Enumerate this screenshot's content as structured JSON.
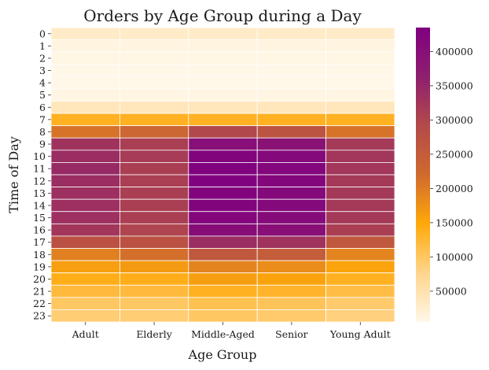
{
  "chart_data": {
    "type": "heatmap",
    "title": "Orders by Age Group during a Day",
    "xlabel": "Age Group",
    "ylabel": "Time of Day",
    "x_categories": [
      "Adult",
      "Elderly",
      "Middle-Aged",
      "Senior",
      "Young Adult"
    ],
    "y_categories": [
      "0",
      "1",
      "2",
      "3",
      "4",
      "5",
      "6",
      "7",
      "8",
      "9",
      "10",
      "11",
      "12",
      "13",
      "14",
      "15",
      "16",
      "17",
      "18",
      "19",
      "20",
      "21",
      "22",
      "23"
    ],
    "values": [
      [
        30000,
        30000,
        30000,
        30000,
        30000
      ],
      [
        12000,
        12000,
        12000,
        12000,
        12000
      ],
      [
        8000,
        8000,
        8000,
        8000,
        8000
      ],
      [
        6000,
        6000,
        6000,
        6000,
        6000
      ],
      [
        6000,
        6000,
        6000,
        6000,
        6000
      ],
      [
        10000,
        10000,
        10000,
        10000,
        10000
      ],
      [
        40000,
        40000,
        40000,
        40000,
        40000
      ],
      [
        135000,
        135000,
        135000,
        135000,
        135000
      ],
      [
        210000,
        230000,
        295000,
        270000,
        210000
      ],
      [
        330000,
        310000,
        400000,
        390000,
        320000
      ],
      [
        340000,
        315000,
        425000,
        415000,
        325000
      ],
      [
        345000,
        310000,
        430000,
        420000,
        325000
      ],
      [
        340000,
        310000,
        430000,
        420000,
        320000
      ],
      [
        335000,
        310000,
        425000,
        415000,
        320000
      ],
      [
        335000,
        310000,
        425000,
        415000,
        320000
      ],
      [
        335000,
        310000,
        420000,
        410000,
        320000
      ],
      [
        325000,
        300000,
        405000,
        400000,
        310000
      ],
      [
        275000,
        275000,
        340000,
        330000,
        260000
      ],
      [
        195000,
        215000,
        260000,
        250000,
        190000
      ],
      [
        160000,
        165000,
        190000,
        180000,
        155000
      ],
      [
        140000,
        140000,
        160000,
        155000,
        135000
      ],
      [
        120000,
        120000,
        135000,
        130000,
        115000
      ],
      [
        100000,
        100000,
        110000,
        105000,
        95000
      ],
      [
        90000,
        90000,
        100000,
        95000,
        85000
      ]
    ],
    "colorbar": {
      "ticks": [
        50000,
        100000,
        150000,
        200000,
        250000,
        300000,
        350000,
        400000
      ],
      "range": [
        5000,
        435000
      ],
      "colors": [
        "#fff7e8",
        "#ffd58c",
        "#ffa90a",
        "#d06a2e",
        "#b34a4a",
        "#8e1f6e",
        "#800080"
      ]
    },
    "grid": true,
    "legend": "colorbar-right"
  }
}
